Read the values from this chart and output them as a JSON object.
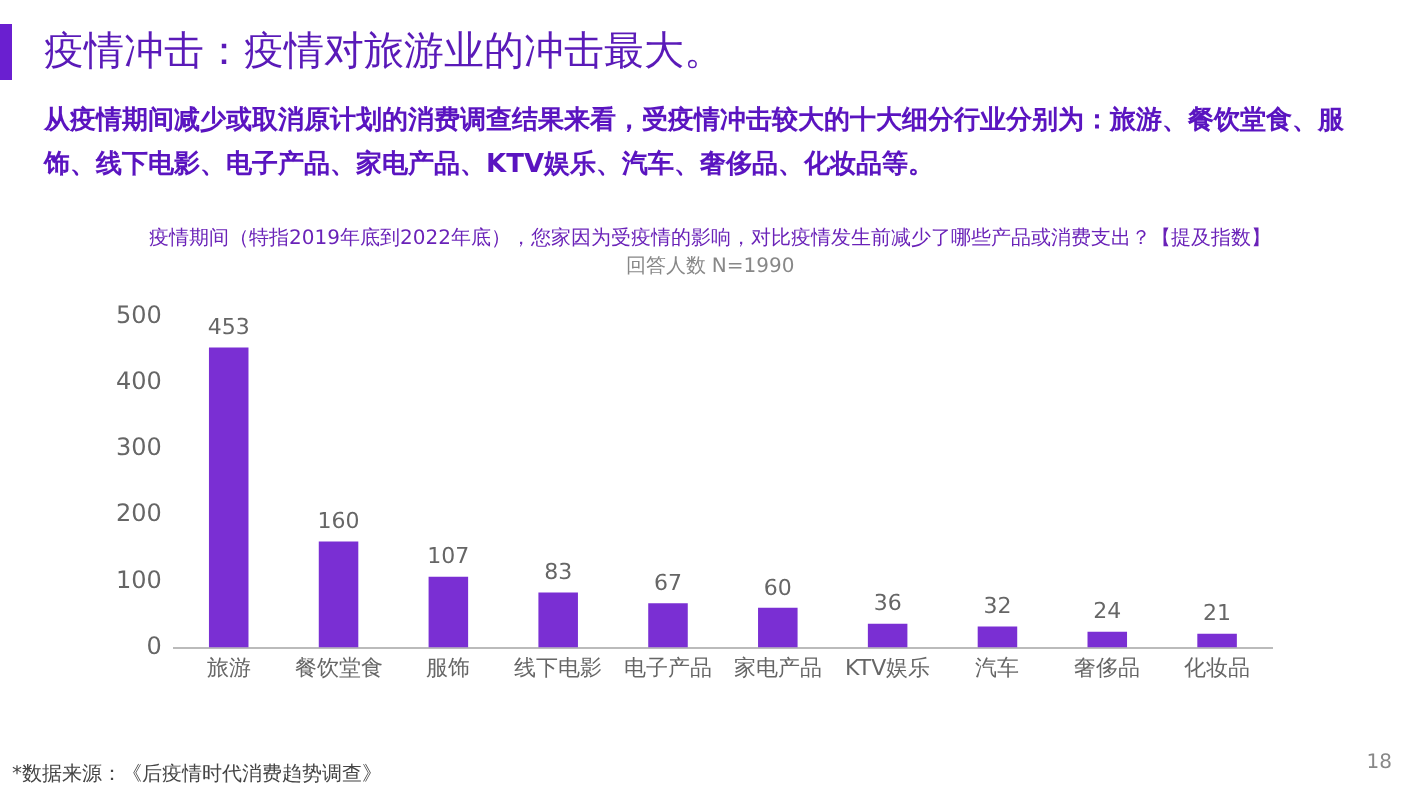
{
  "chart_data": {
    "type": "bar",
    "title": "疫情冲击：疫情对旅游业的冲击最大。",
    "subtitle": "从疫情期间减少或取消原计划的消费调查结果来看，受疫情冲击较大的十大细分行业分别为：旅游、餐饮堂食、服饰、线下电影、电子产品、家电产品、KTV娱乐、汽车、奢侈品、化妆品等。",
    "annotations": [
      "疫情期间（特指2019年底到2022年底），您家因为受疫情的影响，对比疫情发生前减少了哪些产品或消费支出？【提及指数】",
      "回答人数 N=1990",
      "*数据来源：《后疫情时代消费趋势调查》",
      "18"
    ],
    "categories": [
      "旅游",
      "餐饮堂食",
      "服饰",
      "线下电影",
      "电子产品",
      "家电产品",
      "KTV娱乐",
      "汽车",
      "奢侈品",
      "化妆品"
    ],
    "values": [
      453,
      160,
      107,
      83,
      67,
      60,
      36,
      32,
      24,
      21
    ],
    "color": "#7a2fd3",
    "ylim": [
      0,
      500
    ],
    "yticks": [
      0,
      100,
      200,
      300,
      400,
      500
    ],
    "data_labels": true,
    "grid": false,
    "legend": false
  }
}
